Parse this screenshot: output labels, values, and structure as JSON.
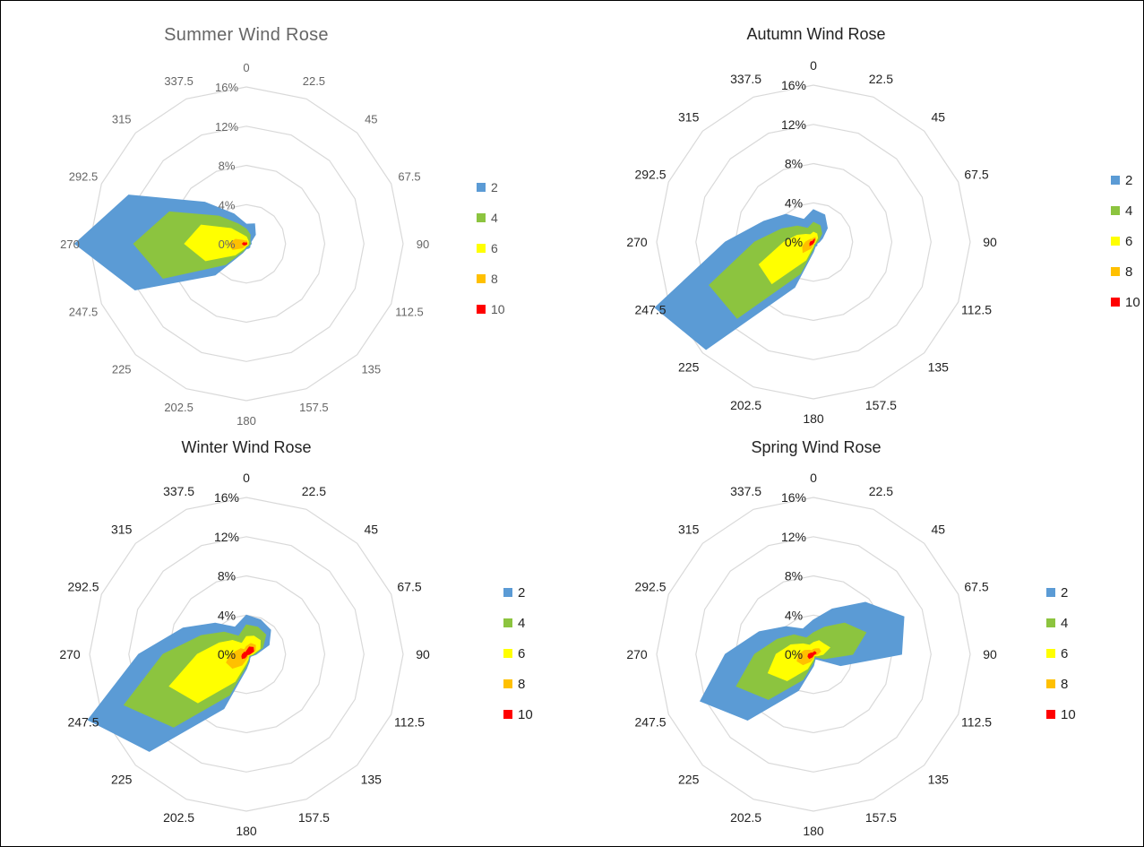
{
  "chart_data": [
    {
      "type": "radar-area",
      "title": "Summer Wind Rose",
      "directions": [
        "0",
        "22.5",
        "45",
        "67.5",
        "90",
        "112.5",
        "135",
        "157.5",
        "180",
        "202.5",
        "225",
        "247.5",
        "270",
        "292.5",
        "315",
        "337.5"
      ],
      "ring_labels": [
        "0%",
        "4%",
        "8%",
        "12%",
        "16%"
      ],
      "rmax": 16,
      "series": [
        {
          "name": "2",
          "color": "#5b9bd5",
          "values": [
            2.0,
            2.2,
            1.3,
            0.5,
            0.5,
            0.4,
            0.5,
            0.5,
            0.5,
            1.0,
            4.5,
            12.3,
            17.5,
            13.0,
            6.0,
            3.3
          ]
        },
        {
          "name": "4",
          "color": "#8cc43f",
          "values": [
            1.5,
            1.0,
            0.5,
            0.4,
            0.4,
            0.3,
            0.3,
            0.3,
            0.3,
            0.8,
            3.0,
            9.2,
            11.5,
            8.5,
            4.0,
            2.2
          ]
        },
        {
          "name": "6",
          "color": "#ffff00",
          "values": [
            0.7,
            0.4,
            0.3,
            0.2,
            0.2,
            0.2,
            0.2,
            0.2,
            0.2,
            0.5,
            1.6,
            4.5,
            6.3,
            5.0,
            2.2,
            1.0
          ]
        },
        {
          "name": "8",
          "color": "#ffc000",
          "values": [
            0.3,
            0.2,
            0.1,
            0.1,
            0.1,
            0.1,
            0.1,
            0.1,
            0.1,
            0.2,
            0.6,
            1.5,
            1.8,
            1.2,
            0.5,
            0.3
          ]
        },
        {
          "name": "10",
          "color": "#ff0000",
          "values": [
            0.1,
            0.1,
            0.05,
            0.05,
            0.05,
            0.05,
            0.05,
            0.05,
            0.05,
            0.05,
            0.15,
            0.3,
            0.4,
            0.3,
            0.1,
            0.05
          ]
        }
      ]
    },
    {
      "type": "radar-area",
      "title": "Autumn Wind Rose",
      "directions": [
        "0",
        "22.5",
        "45",
        "67.5",
        "90",
        "112.5",
        "135",
        "157.5",
        "180",
        "202.5",
        "225",
        "247.5",
        "270",
        "292.5",
        "315",
        "337.5"
      ],
      "ring_labels": [
        "0%",
        "4%",
        "8%",
        "12%",
        "16%"
      ],
      "rmax": 16,
      "series": [
        {
          "name": "2",
          "color": "#5b9bd5",
          "values": [
            3.3,
            3.0,
            2.0,
            1.0,
            0.6,
            0.4,
            0.5,
            0.5,
            1.0,
            5.0,
            15.5,
            17.5,
            9.0,
            5.5,
            4.0,
            2.5
          ]
        },
        {
          "name": "4",
          "color": "#8cc43f",
          "values": [
            2.0,
            1.8,
            1.2,
            0.6,
            0.4,
            0.3,
            0.3,
            0.3,
            0.7,
            3.5,
            11.0,
            11.5,
            6.0,
            3.5,
            2.3,
            1.5
          ]
        },
        {
          "name": "6",
          "color": "#ffff00",
          "values": [
            1.0,
            0.9,
            0.6,
            0.3,
            0.2,
            0.2,
            0.2,
            0.2,
            0.4,
            2.0,
            6.0,
            6.0,
            3.0,
            1.8,
            1.1,
            0.8
          ]
        },
        {
          "name": "8",
          "color": "#ffc000",
          "values": [
            0.4,
            0.5,
            0.3,
            0.15,
            0.1,
            0.1,
            0.1,
            0.1,
            0.2,
            0.7,
            1.5,
            1.2,
            0.8,
            0.5,
            0.4,
            0.3
          ]
        },
        {
          "name": "10",
          "color": "#ff0000",
          "values": [
            0.2,
            0.3,
            0.1,
            0.05,
            0.05,
            0.05,
            0.05,
            0.05,
            0.05,
            0.2,
            0.5,
            0.4,
            0.3,
            0.2,
            0.1,
            0.1
          ]
        }
      ]
    },
    {
      "type": "radar-area",
      "title": "Winter Wind Rose",
      "directions": [
        "0",
        "22.5",
        "45",
        "67.5",
        "90",
        "112.5",
        "135",
        "157.5",
        "180",
        "202.5",
        "225",
        "247.5",
        "270",
        "292.5",
        "315",
        "337.5"
      ],
      "ring_labels": [
        "0%",
        "4%",
        "8%",
        "12%",
        "16%"
      ],
      "rmax": 16,
      "series": [
        {
          "name": "2",
          "color": "#5b9bd5",
          "values": [
            4.0,
            3.8,
            3.5,
            2.5,
            1.0,
            0.5,
            0.5,
            0.8,
            1.5,
            6.0,
            14.0,
            17.5,
            11.0,
            7.0,
            4.5,
            3.0
          ]
        },
        {
          "name": "4",
          "color": "#8cc43f",
          "values": [
            3.0,
            3.0,
            2.8,
            1.8,
            0.8,
            0.4,
            0.4,
            0.6,
            1.2,
            4.5,
            10.5,
            13.5,
            8.5,
            5.0,
            3.2,
            2.0
          ]
        },
        {
          "name": "6",
          "color": "#ffff00",
          "values": [
            1.8,
            2.0,
            2.0,
            1.5,
            0.6,
            0.3,
            0.3,
            0.5,
            0.9,
            3.0,
            7.0,
            8.5,
            5.0,
            3.0,
            2.0,
            1.2
          ]
        },
        {
          "name": "8",
          "color": "#ffc000",
          "values": [
            0.8,
            1.2,
            1.3,
            1.0,
            0.4,
            0.2,
            0.2,
            0.3,
            0.5,
            1.2,
            2.0,
            2.2,
            1.6,
            1.0,
            0.8,
            0.5
          ]
        },
        {
          "name": "10",
          "color": "#ff0000",
          "values": [
            0.3,
            0.8,
            1.0,
            0.8,
            0.3,
            0.1,
            0.1,
            0.1,
            0.2,
            0.4,
            0.6,
            0.5,
            0.4,
            0.3,
            0.3,
            0.2
          ]
        }
      ]
    },
    {
      "type": "radar-area",
      "title": "Spring Wind Rose",
      "directions": [
        "0",
        "22.5",
        "45",
        "67.5",
        "90",
        "112.5",
        "135",
        "157.5",
        "180",
        "202.5",
        "225",
        "247.5",
        "270",
        "292.5",
        "315",
        "337.5"
      ],
      "ring_labels": [
        "0%",
        "4%",
        "8%",
        "12%",
        "16%"
      ],
      "rmax": 16,
      "series": [
        {
          "name": "2",
          "color": "#5b9bd5",
          "values": [
            3.5,
            5.0,
            7.5,
            10.0,
            9.0,
            3.0,
            0.8,
            0.5,
            1.2,
            4.0,
            9.5,
            12.5,
            9.0,
            6.0,
            4.0,
            2.8
          ]
        },
        {
          "name": "4",
          "color": "#8cc43f",
          "values": [
            2.2,
            3.0,
            4.5,
            5.8,
            4.0,
            1.2,
            0.4,
            0.3,
            0.8,
            2.8,
            6.5,
            8.5,
            6.0,
            4.0,
            2.8,
            1.8
          ]
        },
        {
          "name": "6",
          "color": "#ffff00",
          "values": [
            1.2,
            1.5,
            1.5,
            1.8,
            1.0,
            0.4,
            0.2,
            0.2,
            0.5,
            1.6,
            3.8,
            5.0,
            3.8,
            2.5,
            1.5,
            1.0
          ]
        },
        {
          "name": "8",
          "color": "#ffc000",
          "values": [
            0.5,
            0.6,
            0.8,
            0.8,
            0.4,
            0.2,
            0.1,
            0.1,
            0.3,
            0.8,
            1.5,
            1.8,
            1.5,
            1.0,
            0.6,
            0.4
          ]
        },
        {
          "name": "10",
          "color": "#ff0000",
          "values": [
            0.2,
            0.3,
            0.3,
            0.3,
            0.1,
            0.05,
            0.05,
            0.05,
            0.1,
            0.3,
            0.6,
            0.6,
            0.5,
            0.3,
            0.2,
            0.1
          ]
        }
      ]
    }
  ]
}
